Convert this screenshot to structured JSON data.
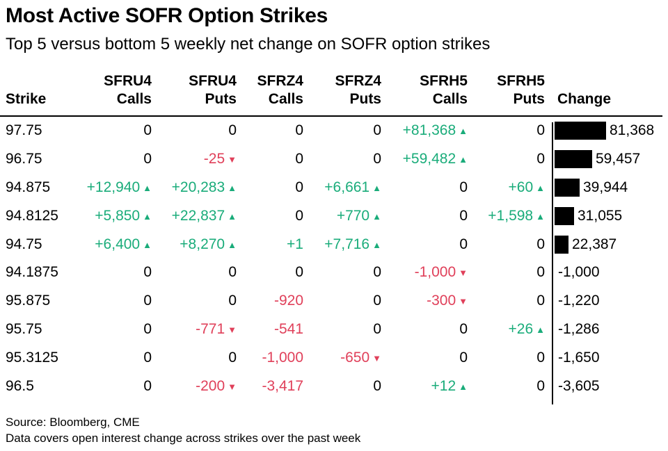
{
  "title": "Most Active SOFR Option Strikes",
  "subtitle": "Top 5 versus bottom 5 weekly net change on SOFR option strikes",
  "source": "Source: Bloomberg, CME",
  "note": "Data covers open interest change across strikes over the past week",
  "colors": {
    "positive": "#1aac7a",
    "negative": "#e0405a",
    "bar": "#000000"
  },
  "arrows": {
    "up": "▲",
    "down": "▼"
  },
  "headers": {
    "strike": "Strike",
    "columns": [
      {
        "top": "SFRU4",
        "bottom": "Calls"
      },
      {
        "top": "SFRU4",
        "bottom": "Puts"
      },
      {
        "top": "SFRZ4",
        "bottom": "Calls"
      },
      {
        "top": "SFRZ4",
        "bottom": "Puts"
      },
      {
        "top": "SFRH5",
        "bottom": "Calls"
      },
      {
        "top": "SFRH5",
        "bottom": "Puts"
      }
    ],
    "change": "Change"
  },
  "chart_data": {
    "type": "table",
    "title": "Most Active SOFR Option Strikes",
    "subtitle": "Top 5 versus bottom 5 weekly net change on SOFR option strikes",
    "columns": [
      "Strike",
      "SFRU4 Calls",
      "SFRU4 Puts",
      "SFRZ4 Calls",
      "SFRZ4 Puts",
      "SFRH5 Calls",
      "SFRH5 Puts",
      "Change"
    ],
    "rows": [
      {
        "strike": "97.75",
        "cells": [
          {
            "text": "0",
            "dir": "none"
          },
          {
            "text": "0",
            "dir": "none"
          },
          {
            "text": "0",
            "dir": "none"
          },
          {
            "text": "0",
            "dir": "none"
          },
          {
            "text": "+81,368",
            "dir": "up"
          },
          {
            "text": "0",
            "dir": "none"
          }
        ],
        "change": 81368,
        "change_label": "81,368"
      },
      {
        "strike": "96.75",
        "cells": [
          {
            "text": "0",
            "dir": "none"
          },
          {
            "text": "-25",
            "dir": "down"
          },
          {
            "text": "0",
            "dir": "none"
          },
          {
            "text": "0",
            "dir": "none"
          },
          {
            "text": "+59,482",
            "dir": "up"
          },
          {
            "text": "0",
            "dir": "none"
          }
        ],
        "change": 59457,
        "change_label": "59,457"
      },
      {
        "strike": "94.875",
        "cells": [
          {
            "text": "+12,940",
            "dir": "up"
          },
          {
            "text": "+20,283",
            "dir": "up"
          },
          {
            "text": "0",
            "dir": "none"
          },
          {
            "text": "+6,661",
            "dir": "up"
          },
          {
            "text": "0",
            "dir": "none"
          },
          {
            "text": "+60",
            "dir": "up"
          }
        ],
        "change": 39944,
        "change_label": "39,944"
      },
      {
        "strike": "94.8125",
        "cells": [
          {
            "text": "+5,850",
            "dir": "up"
          },
          {
            "text": "+22,837",
            "dir": "up"
          },
          {
            "text": "0",
            "dir": "none"
          },
          {
            "text": "+770",
            "dir": "up"
          },
          {
            "text": "0",
            "dir": "none"
          },
          {
            "text": "+1,598",
            "dir": "up"
          }
        ],
        "change": 31055,
        "change_label": "31,055"
      },
      {
        "strike": "94.75",
        "cells": [
          {
            "text": "+6,400",
            "dir": "up"
          },
          {
            "text": "+8,270",
            "dir": "up"
          },
          {
            "text": "+1",
            "dir": "none"
          },
          {
            "text": "+7,716",
            "dir": "up"
          },
          {
            "text": "0",
            "dir": "none"
          },
          {
            "text": "0",
            "dir": "none"
          }
        ],
        "change": 22387,
        "change_label": "22,387"
      },
      {
        "strike": "94.1875",
        "cells": [
          {
            "text": "0",
            "dir": "none"
          },
          {
            "text": "0",
            "dir": "none"
          },
          {
            "text": "0",
            "dir": "none"
          },
          {
            "text": "0",
            "dir": "none"
          },
          {
            "text": "-1,000",
            "dir": "down"
          },
          {
            "text": "0",
            "dir": "none"
          }
        ],
        "change": -1000,
        "change_label": "-1,000"
      },
      {
        "strike": "95.875",
        "cells": [
          {
            "text": "0",
            "dir": "none"
          },
          {
            "text": "0",
            "dir": "none"
          },
          {
            "text": "-920",
            "dir": "none"
          },
          {
            "text": "0",
            "dir": "none"
          },
          {
            "text": "-300",
            "dir": "down"
          },
          {
            "text": "0",
            "dir": "none"
          }
        ],
        "change": -1220,
        "change_label": "-1,220"
      },
      {
        "strike": "95.75",
        "cells": [
          {
            "text": "0",
            "dir": "none"
          },
          {
            "text": "-771",
            "dir": "down"
          },
          {
            "text": "-541",
            "dir": "none"
          },
          {
            "text": "0",
            "dir": "none"
          },
          {
            "text": "0",
            "dir": "none"
          },
          {
            "text": "+26",
            "dir": "up"
          }
        ],
        "change": -1286,
        "change_label": "-1,286"
      },
      {
        "strike": "95.3125",
        "cells": [
          {
            "text": "0",
            "dir": "none"
          },
          {
            "text": "0",
            "dir": "none"
          },
          {
            "text": "-1,000",
            "dir": "none"
          },
          {
            "text": "-650",
            "dir": "down"
          },
          {
            "text": "0",
            "dir": "none"
          },
          {
            "text": "0",
            "dir": "none"
          }
        ],
        "change": -1650,
        "change_label": "-1,650"
      },
      {
        "strike": "96.5",
        "cells": [
          {
            "text": "0",
            "dir": "none"
          },
          {
            "text": "-200",
            "dir": "down"
          },
          {
            "text": "-3,417",
            "dir": "none"
          },
          {
            "text": "0",
            "dir": "none"
          },
          {
            "text": "+12",
            "dir": "up"
          },
          {
            "text": "0",
            "dir": "none"
          }
        ],
        "change": -3605,
        "change_label": "-3,605"
      }
    ]
  }
}
